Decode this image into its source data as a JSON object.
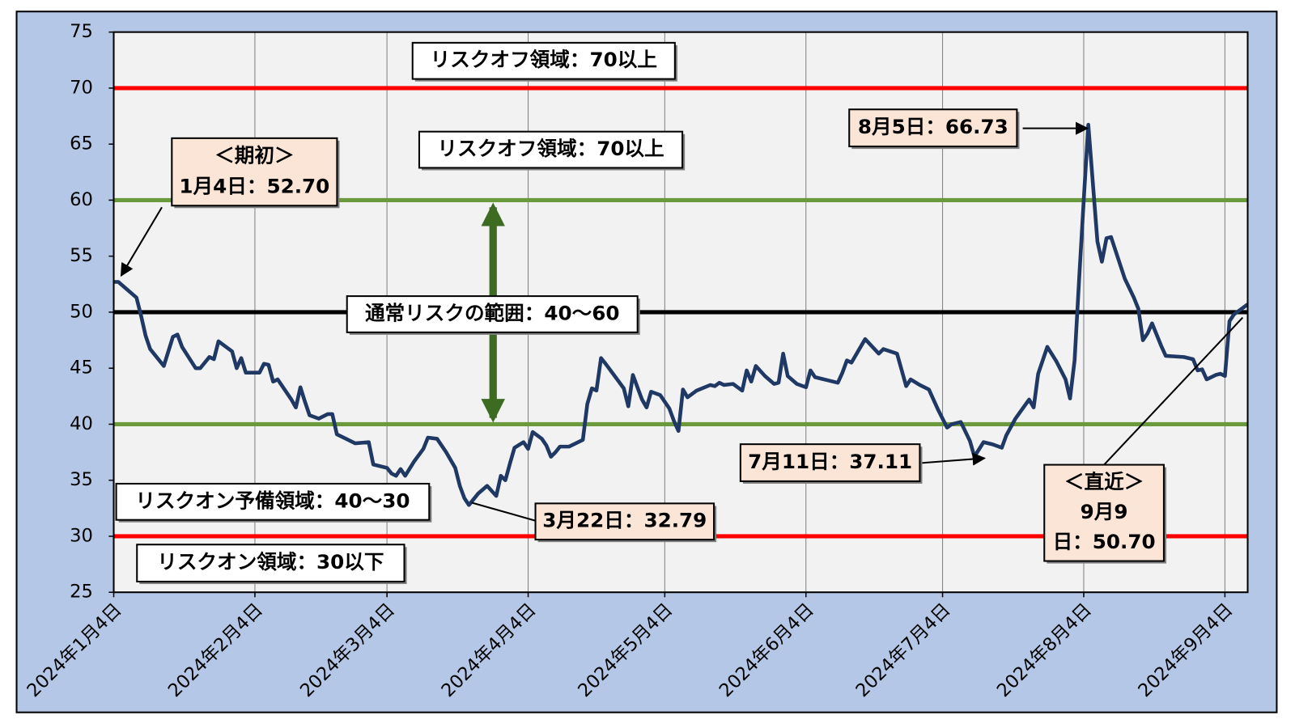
{
  "chart_data": {
    "type": "line",
    "x": [
      "2024-01-04",
      "2024-01-05",
      "2024-01-09",
      "2024-01-10",
      "2024-01-11",
      "2024-01-12",
      "2024-01-15",
      "2024-01-17",
      "2024-01-18",
      "2024-01-19",
      "2024-01-22",
      "2024-01-23",
      "2024-01-25",
      "2024-01-26",
      "2024-01-27",
      "2024-01-30",
      "2024-01-31",
      "2024-02-01",
      "2024-02-02",
      "2024-02-05",
      "2024-02-06",
      "2024-02-07",
      "2024-02-08",
      "2024-02-09",
      "2024-02-12",
      "2024-02-13",
      "2024-02-14",
      "2024-02-15",
      "2024-02-16",
      "2024-02-18",
      "2024-02-20",
      "2024-02-21",
      "2024-02-22",
      "2024-02-24",
      "2024-02-26",
      "2024-02-29",
      "2024-03-01",
      "2024-03-04",
      "2024-03-05",
      "2024-03-06",
      "2024-03-07",
      "2024-03-08",
      "2024-03-10",
      "2024-03-12",
      "2024-03-13",
      "2024-03-15",
      "2024-03-17",
      "2024-03-19",
      "2024-03-20",
      "2024-03-21",
      "2024-03-22",
      "2024-03-24",
      "2024-03-26",
      "2024-03-28",
      "2024-03-29",
      "2024-03-30",
      "2024-03-31",
      "2024-04-01",
      "2024-04-03",
      "2024-04-04",
      "2024-04-05",
      "2024-04-07",
      "2024-04-08",
      "2024-04-09",
      "2024-04-10",
      "2024-04-11",
      "2024-04-13",
      "2024-04-15",
      "2024-04-16",
      "2024-04-17",
      "2024-04-18",
      "2024-04-19",
      "2024-04-20",
      "2024-04-21",
      "2024-04-23",
      "2024-04-25",
      "2024-04-26",
      "2024-04-27",
      "2024-04-28",
      "2024-04-29",
      "2024-04-30",
      "2024-05-01",
      "2024-05-03",
      "2024-05-05",
      "2024-05-06",
      "2024-05-07",
      "2024-05-08",
      "2024-05-09",
      "2024-05-11",
      "2024-05-14",
      "2024-05-15",
      "2024-05-16",
      "2024-05-17",
      "2024-05-19",
      "2024-05-20",
      "2024-05-21",
      "2024-05-22",
      "2024-05-23",
      "2024-05-24",
      "2024-05-26",
      "2024-05-28",
      "2024-05-29",
      "2024-05-30",
      "2024-05-31",
      "2024-06-02",
      "2024-06-04",
      "2024-06-05",
      "2024-06-06",
      "2024-06-09",
      "2024-06-11",
      "2024-06-12",
      "2024-06-13",
      "2024-06-14",
      "2024-06-17",
      "2024-06-20",
      "2024-06-21",
      "2024-06-24",
      "2024-06-26",
      "2024-06-27",
      "2024-06-29",
      "2024-07-01",
      "2024-07-03",
      "2024-07-05",
      "2024-07-06",
      "2024-07-08",
      "2024-07-10",
      "2024-07-11",
      "2024-07-13",
      "2024-07-15",
      "2024-07-17",
      "2024-07-18",
      "2024-07-20",
      "2024-07-23",
      "2024-07-24",
      "2024-07-25",
      "2024-07-27",
      "2024-07-29",
      "2024-07-31",
      "2024-08-01",
      "2024-08-02",
      "2024-08-03",
      "2024-08-04",
      "2024-08-05",
      "2024-08-07",
      "2024-08-08",
      "2024-08-09",
      "2024-08-10",
      "2024-08-13",
      "2024-08-15",
      "2024-08-16",
      "2024-08-17",
      "2024-08-18",
      "2024-08-19",
      "2024-08-21",
      "2024-08-22",
      "2024-08-26",
      "2024-08-28",
      "2024-08-29",
      "2024-08-30",
      "2024-08-31",
      "2024-09-02",
      "2024-09-03",
      "2024-09-04",
      "2024-09-05",
      "2024-09-06",
      "2024-09-09"
    ],
    "series": [
      {
        "color": "#1f3864",
        "values": [
          52.7,
          52.7,
          51.3,
          49.7,
          47.9,
          46.7,
          45.2,
          47.8,
          48.0,
          46.9,
          45.0,
          45.0,
          46.0,
          45.8,
          47.4,
          46.5,
          45.0,
          45.9,
          44.6,
          44.6,
          45.4,
          45.3,
          43.8,
          44.0,
          42.2,
          41.5,
          43.3,
          42.0,
          40.8,
          40.5,
          40.9,
          40.9,
          39.1,
          38.7,
          38.3,
          38.4,
          36.4,
          36.1,
          35.6,
          35.4,
          36.0,
          35.4,
          36.7,
          37.8,
          38.8,
          38.7,
          37.5,
          36.1,
          34.5,
          33.4,
          32.79,
          33.8,
          34.5,
          33.6,
          35.4,
          35.0,
          36.5,
          37.9,
          38.4,
          37.8,
          39.3,
          38.7,
          38.1,
          37.1,
          37.5,
          38.0,
          38.0,
          38.4,
          38.6,
          41.8,
          43.2,
          43.0,
          45.9,
          45.4,
          44.3,
          43.2,
          41.6,
          44.4,
          43.3,
          42.2,
          41.5,
          42.9,
          42.6,
          41.4,
          40.3,
          39.4,
          43.1,
          42.4,
          43.0,
          43.5,
          43.4,
          43.7,
          43.5,
          43.6,
          43.3,
          43.0,
          44.8,
          43.8,
          45.2,
          44.3,
          43.6,
          43.7,
          46.3,
          44.3,
          43.6,
          43.3,
          44.8,
          44.2,
          43.9,
          43.7,
          44.6,
          45.7,
          45.5,
          47.6,
          46.3,
          46.7,
          46.3,
          43.4,
          44.0,
          43.5,
          43.1,
          41.3,
          39.7,
          40.0,
          40.2,
          38.5,
          37.11,
          38.4,
          38.2,
          37.9,
          39.0,
          40.5,
          42.2,
          41.5,
          44.5,
          46.9,
          45.6,
          44.0,
          42.3,
          45.7,
          53.0,
          60.0,
          66.73,
          56.3,
          54.5,
          56.6,
          56.7,
          53.0,
          51.3,
          50.3,
          47.5,
          48.1,
          49.0,
          47.0,
          46.1,
          46.0,
          45.8,
          44.8,
          44.9,
          44.0,
          44.4,
          44.5,
          44.3,
          49.2,
          49.8,
          50.7
        ]
      }
    ],
    "xlim": [
      "2024-01-04",
      "2024-09-09"
    ],
    "xticks": [
      {
        "value": "2024-01-04",
        "label": "2024年1月4日"
      },
      {
        "value": "2024-02-04",
        "label": "2024年2月4日"
      },
      {
        "value": "2024-03-04",
        "label": "2024年3月4日"
      },
      {
        "value": "2024-04-04",
        "label": "2024年4月4日"
      },
      {
        "value": "2024-05-04",
        "label": "2024年5月4日"
      },
      {
        "value": "2024-06-04",
        "label": "2024年6月4日"
      },
      {
        "value": "2024-07-04",
        "label": "2024年7月4日"
      },
      {
        "value": "2024-08-04",
        "label": "2024年8月4日"
      },
      {
        "value": "2024-09-04",
        "label": "2024年9月4日"
      }
    ],
    "ylim": [
      25,
      75
    ],
    "yticks": [
      25,
      30,
      35,
      40,
      45,
      50,
      55,
      60,
      65,
      70,
      75
    ],
    "grid": "x",
    "reference_lines": [
      {
        "value": 70,
        "color": "#ff0000"
      },
      {
        "value": 60,
        "color": "#6a9a3c"
      },
      {
        "value": 50,
        "color": "#000000"
      },
      {
        "value": 40,
        "color": "#6a9a3c"
      },
      {
        "value": 30,
        "color": "#ff0000"
      }
    ],
    "annotations": [
      {
        "lines": [
          "リスクオフ領域：70以上"
        ],
        "fill": "#ffffff"
      },
      {
        "lines": [
          "リスクオフ領域：70以上"
        ],
        "fill": "#ffffff"
      },
      {
        "lines": [
          "＜期初＞",
          "1月4日：52.70"
        ],
        "fill": "#fbe5d6"
      },
      {
        "lines": [
          "通常リスクの範囲：40～60"
        ],
        "fill": "#ffffff"
      },
      {
        "lines": [
          "8月5日：66.73"
        ],
        "fill": "#fbe5d6"
      },
      {
        "lines": [
          "7月11日：37.11"
        ],
        "fill": "#fbe5d6"
      },
      {
        "lines": [
          "3月22日：32.79"
        ],
        "fill": "#fbe5d6"
      },
      {
        "lines": [
          "＜直近＞",
          "9月9",
          "日：50.70"
        ],
        "fill": "#fbe5d6"
      },
      {
        "lines": [
          "リスクオン予備領域：40～30"
        ],
        "fill": "#ffffff"
      },
      {
        "lines": [
          "リスクオン領域：30以下"
        ],
        "fill": "#ffffff"
      }
    ]
  }
}
